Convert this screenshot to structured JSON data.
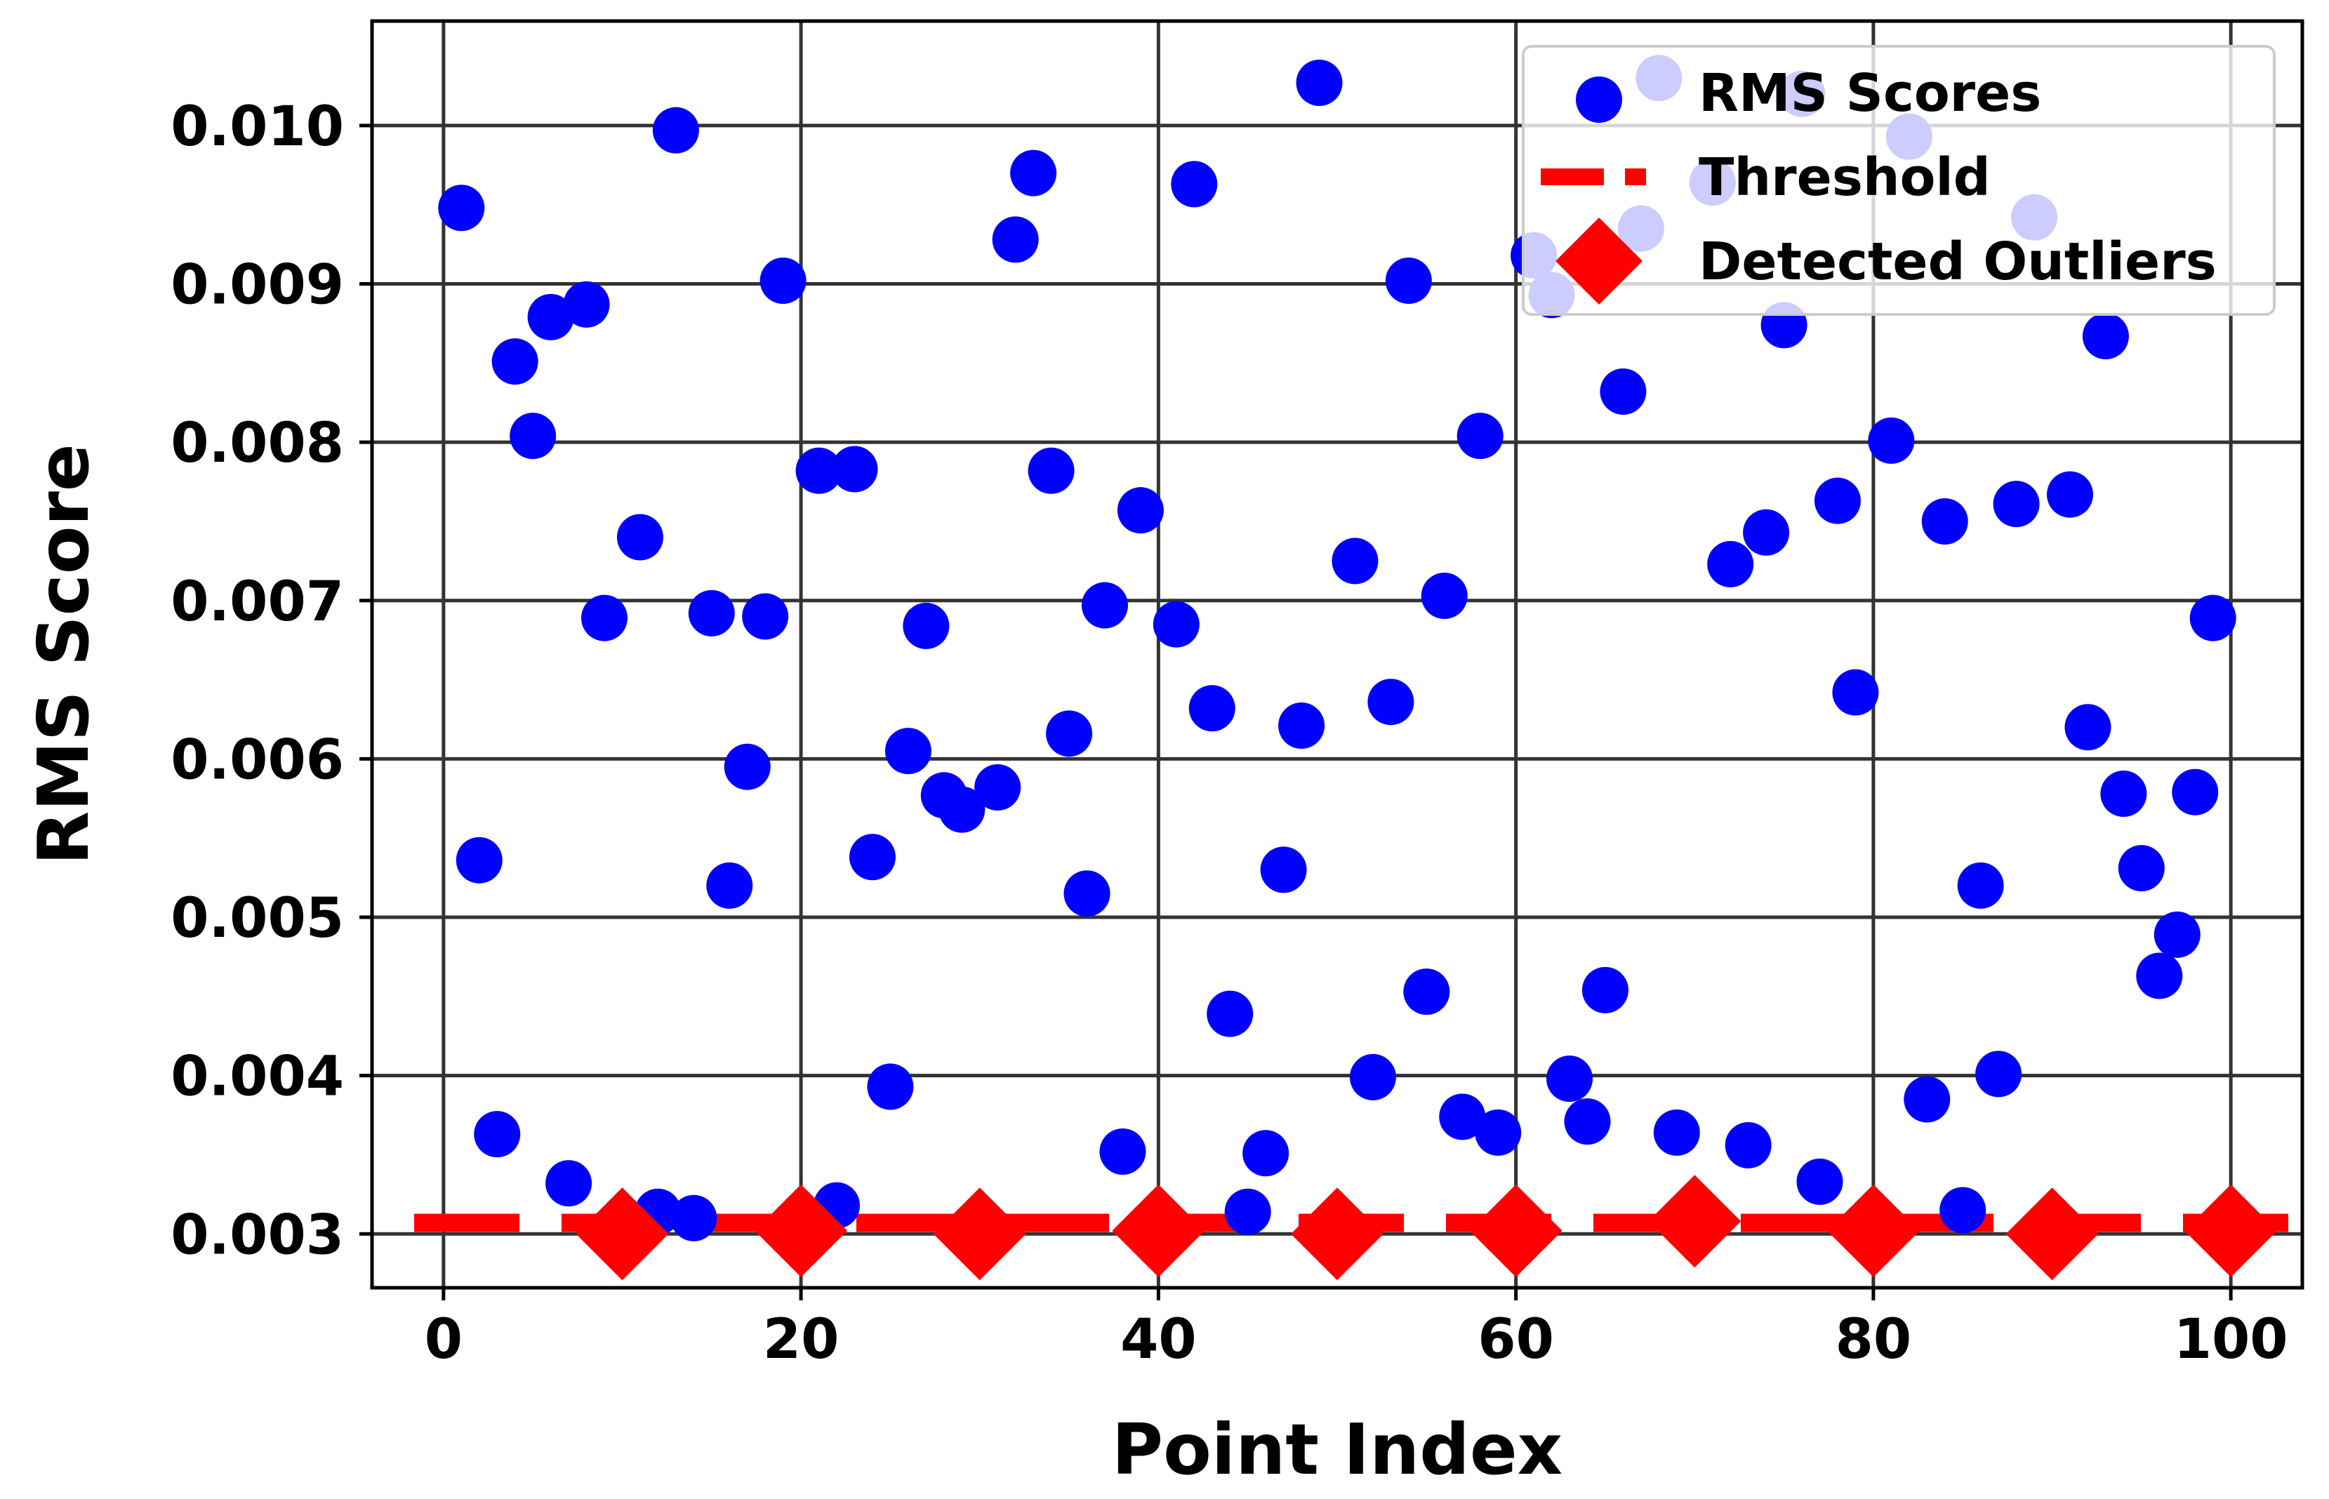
{
  "chart_data": {
    "type": "scatter",
    "title": "",
    "xlabel": "Point Index",
    "ylabel": "RMS Score",
    "xlim": [
      -4,
      104
    ],
    "ylim": [
      0.00266,
      0.01066
    ],
    "xticks": [
      0,
      20,
      40,
      60,
      80,
      100
    ],
    "xtick_labels": [
      "0",
      "20",
      "40",
      "60",
      "80",
      "100"
    ],
    "yticks": [
      0.003,
      0.004,
      0.005,
      0.006,
      0.007,
      0.008,
      0.009,
      0.01
    ],
    "ytick_labels": [
      "0.003",
      "0.004",
      "0.005",
      "0.006",
      "0.007",
      "0.008",
      "0.009",
      "0.010"
    ],
    "grid": true,
    "legend_position": "top-right",
    "colors": {
      "scores": "#0000ff",
      "threshold": "#ff0000",
      "outliers": "#ff0000",
      "grid": "#333333"
    },
    "series": [
      {
        "name": "RMS Scores",
        "kind": "points",
        "points": [
          [
            1,
            0.00948
          ],
          [
            2,
            0.00536
          ],
          [
            3,
            0.00363
          ],
          [
            4,
            0.00851
          ],
          [
            5,
            0.00804
          ],
          [
            6,
            0.00879
          ],
          [
            7,
            0.00332
          ],
          [
            8,
            0.00887
          ],
          [
            9,
            0.00689
          ],
          [
            11,
            0.0074
          ],
          [
            12,
            0.00314
          ],
          [
            13,
            0.00997
          ],
          [
            14,
            0.0031
          ],
          [
            15,
            0.00692
          ],
          [
            16,
            0.0052
          ],
          [
            17,
            0.00595
          ],
          [
            18,
            0.0069
          ],
          [
            19,
            0.00902
          ],
          [
            21,
            0.00782
          ],
          [
            22,
            0.00318
          ],
          [
            23,
            0.00783
          ],
          [
            24,
            0.00538
          ],
          [
            25,
            0.00393
          ],
          [
            26,
            0.00605
          ],
          [
            27,
            0.00684
          ],
          [
            28,
            0.00577
          ],
          [
            29,
            0.00568
          ],
          [
            31,
            0.00582
          ],
          [
            32,
            0.00928
          ],
          [
            33,
            0.0097
          ],
          [
            34,
            0.00782
          ],
          [
            35,
            0.00616
          ],
          [
            36,
            0.00515
          ],
          [
            37,
            0.00697
          ],
          [
            38,
            0.00352
          ],
          [
            39,
            0.00757
          ],
          [
            41,
            0.00685
          ],
          [
            42,
            0.00963
          ],
          [
            43,
            0.00632
          ],
          [
            44,
            0.00439
          ],
          [
            45,
            0.00314
          ],
          [
            46,
            0.00351
          ],
          [
            47,
            0.0053
          ],
          [
            48,
            0.00621
          ],
          [
            49,
            0.01027
          ],
          [
            51,
            0.00725
          ],
          [
            52,
            0.00399
          ],
          [
            53,
            0.00636
          ],
          [
            54,
            0.00902
          ],
          [
            55,
            0.00453
          ],
          [
            56,
            0.00703
          ],
          [
            57,
            0.00374
          ],
          [
            58,
            0.00804
          ],
          [
            59,
            0.00364
          ],
          [
            61,
            0.00918
          ],
          [
            62,
            0.00893
          ],
          [
            63,
            0.00398
          ],
          [
            64,
            0.00371
          ],
          [
            65,
            0.00454
          ],
          [
            66,
            0.00832
          ],
          [
            67,
            0.00935
          ],
          [
            68,
            0.0103
          ],
          [
            69,
            0.00364
          ],
          [
            71,
            0.00964
          ],
          [
            72,
            0.00723
          ],
          [
            73,
            0.00356
          ],
          [
            74,
            0.00743
          ],
          [
            75,
            0.00874
          ],
          [
            76,
            0.0102
          ],
          [
            77,
            0.00333
          ],
          [
            78,
            0.00763
          ],
          [
            79,
            0.00642
          ],
          [
            81,
            0.00801
          ],
          [
            82,
            0.00993
          ],
          [
            83,
            0.00385
          ],
          [
            84,
            0.0075
          ],
          [
            85,
            0.00315
          ],
          [
            86,
            0.0052
          ],
          [
            87,
            0.00401
          ],
          [
            88,
            0.00761
          ],
          [
            89,
            0.00942
          ],
          [
            91,
            0.00767
          ],
          [
            92,
            0.0062
          ],
          [
            93,
            0.00867
          ],
          [
            94,
            0.00578
          ],
          [
            95,
            0.00531
          ],
          [
            96,
            0.00463
          ],
          [
            97,
            0.00489
          ],
          [
            98,
            0.00579
          ],
          [
            99,
            0.00689
          ]
        ]
      },
      {
        "name": "Threshold",
        "kind": "hline",
        "y": 0.00307
      },
      {
        "name": "Detected Outliers",
        "kind": "markers",
        "points": [
          [
            10,
            0.003
          ],
          [
            20,
            0.00302
          ],
          [
            30,
            0.003
          ],
          [
            40,
            0.00302
          ],
          [
            50,
            0.003
          ],
          [
            60,
            0.00302
          ],
          [
            70,
            0.00308
          ],
          [
            80,
            0.00302
          ],
          [
            90,
            0.003
          ],
          [
            100,
            0.00302
          ]
        ]
      }
    ]
  }
}
